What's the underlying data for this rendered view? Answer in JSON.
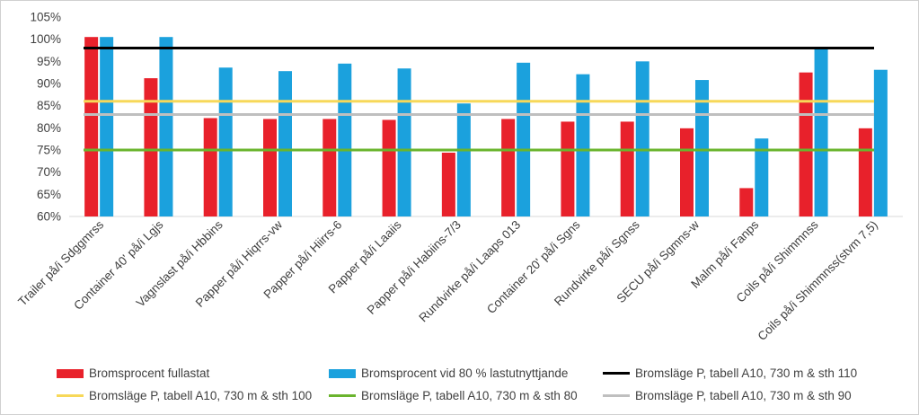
{
  "chart_data": {
    "type": "bar",
    "title": "",
    "xlabel": "",
    "ylabel": "",
    "ylim": [
      60,
      105
    ],
    "yticks": [
      60,
      65,
      70,
      75,
      80,
      85,
      90,
      95,
      100,
      105
    ],
    "ytick_labels": [
      "60%",
      "65%",
      "70%",
      "75%",
      "80%",
      "85%",
      "90%",
      "95%",
      "100%",
      "105%"
    ],
    "grid": false,
    "legend_position": "bottom",
    "categories": [
      "Trailer på/i Sdggmrss",
      "Container 40' på/i Lgjs",
      "Vagnslast på/i Hbbins",
      "Papper på/i Hiqrrs-vw",
      "Papper på/i Hiirrs-6",
      "Papper på/i Laaiis",
      "Papper på/i Habiins-7/3",
      "Rundvirke på/i Laaps 013",
      "Container 20' på/i Sgns",
      "Rundvirke på/i Sgnss",
      "SECU på/i Sgmns-w",
      "Malm på/i Fanps",
      "Coils på/i Shimmnss",
      "Coils på/i Shimmnss(stvm 7,5)"
    ],
    "series": [
      {
        "name": "Bromsprocent fullastat",
        "color": "#e8212b",
        "values": [
          100.5,
          91.2,
          82.2,
          82.0,
          82.0,
          81.8,
          74.4,
          82.0,
          81.4,
          81.4,
          79.9,
          66.4,
          92.5,
          79.9
        ]
      },
      {
        "name": "Bromsprocent vid 80 % lastutnyttjande",
        "color": "#1ba1dd",
        "values": [
          100.5,
          100.5,
          93.6,
          92.8,
          94.5,
          93.4,
          85.5,
          94.7,
          92.1,
          95.0,
          90.8,
          77.6,
          98.3,
          93.1
        ]
      }
    ],
    "reference_lines": [
      {
        "name": "Bromsläge P, tabell A10, 730 m & sth 110",
        "color": "#000000",
        "value": 98
      },
      {
        "name": "Bromsläge P, tabell A10, 730 m & sth 100",
        "color": "#f7d859",
        "value": 86
      },
      {
        "name": "Bromsläge P, tabell A10, 730 m & sth 80",
        "color": "#6ab42d",
        "value": 75
      },
      {
        "name": "Bromsläge P, tabell A10, 730 m & sth 90",
        "color": "#bfbfbf",
        "value": 83
      }
    ]
  }
}
